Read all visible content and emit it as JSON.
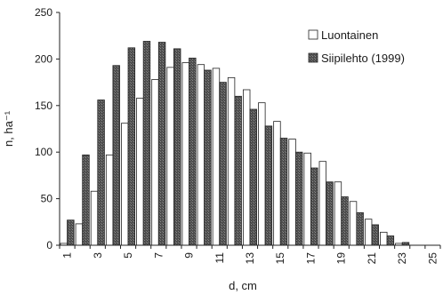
{
  "chart_data": {
    "type": "bar",
    "title": "",
    "xlabel": "d, cm",
    "ylabel": "n, ha⁻¹",
    "ylim": [
      0,
      250
    ],
    "yticks": [
      0,
      50,
      100,
      150,
      200,
      250
    ],
    "xrange": [
      1,
      25
    ],
    "xtick_labels": [
      "1",
      "3",
      "5",
      "7",
      "9",
      "11",
      "13",
      "15",
      "17",
      "19",
      "21",
      "23",
      "25"
    ],
    "categories": [
      1,
      2,
      3,
      4,
      5,
      6,
      7,
      8,
      9,
      10,
      11,
      12,
      13,
      14,
      15,
      16,
      17,
      18,
      19,
      20,
      21,
      22,
      23,
      24,
      25
    ],
    "legend_position": "top-right",
    "grid": false,
    "series": [
      {
        "name": "Luontainen",
        "color": "#ffffff",
        "values": [
          2,
          23,
          58,
          97,
          131,
          158,
          178,
          191,
          196,
          194,
          190,
          180,
          167,
          153,
          133,
          114,
          99,
          90,
          68,
          47,
          28,
          14,
          2,
          0,
          0
        ]
      },
      {
        "name": "Siipilehto (1999)",
        "color": "#5a5a5a",
        "values": [
          27,
          97,
          156,
          193,
          212,
          219,
          218,
          211,
          201,
          188,
          175,
          160,
          146,
          128,
          115,
          100,
          83,
          68,
          52,
          35,
          22,
          10,
          3,
          0,
          0
        ]
      }
    ]
  }
}
